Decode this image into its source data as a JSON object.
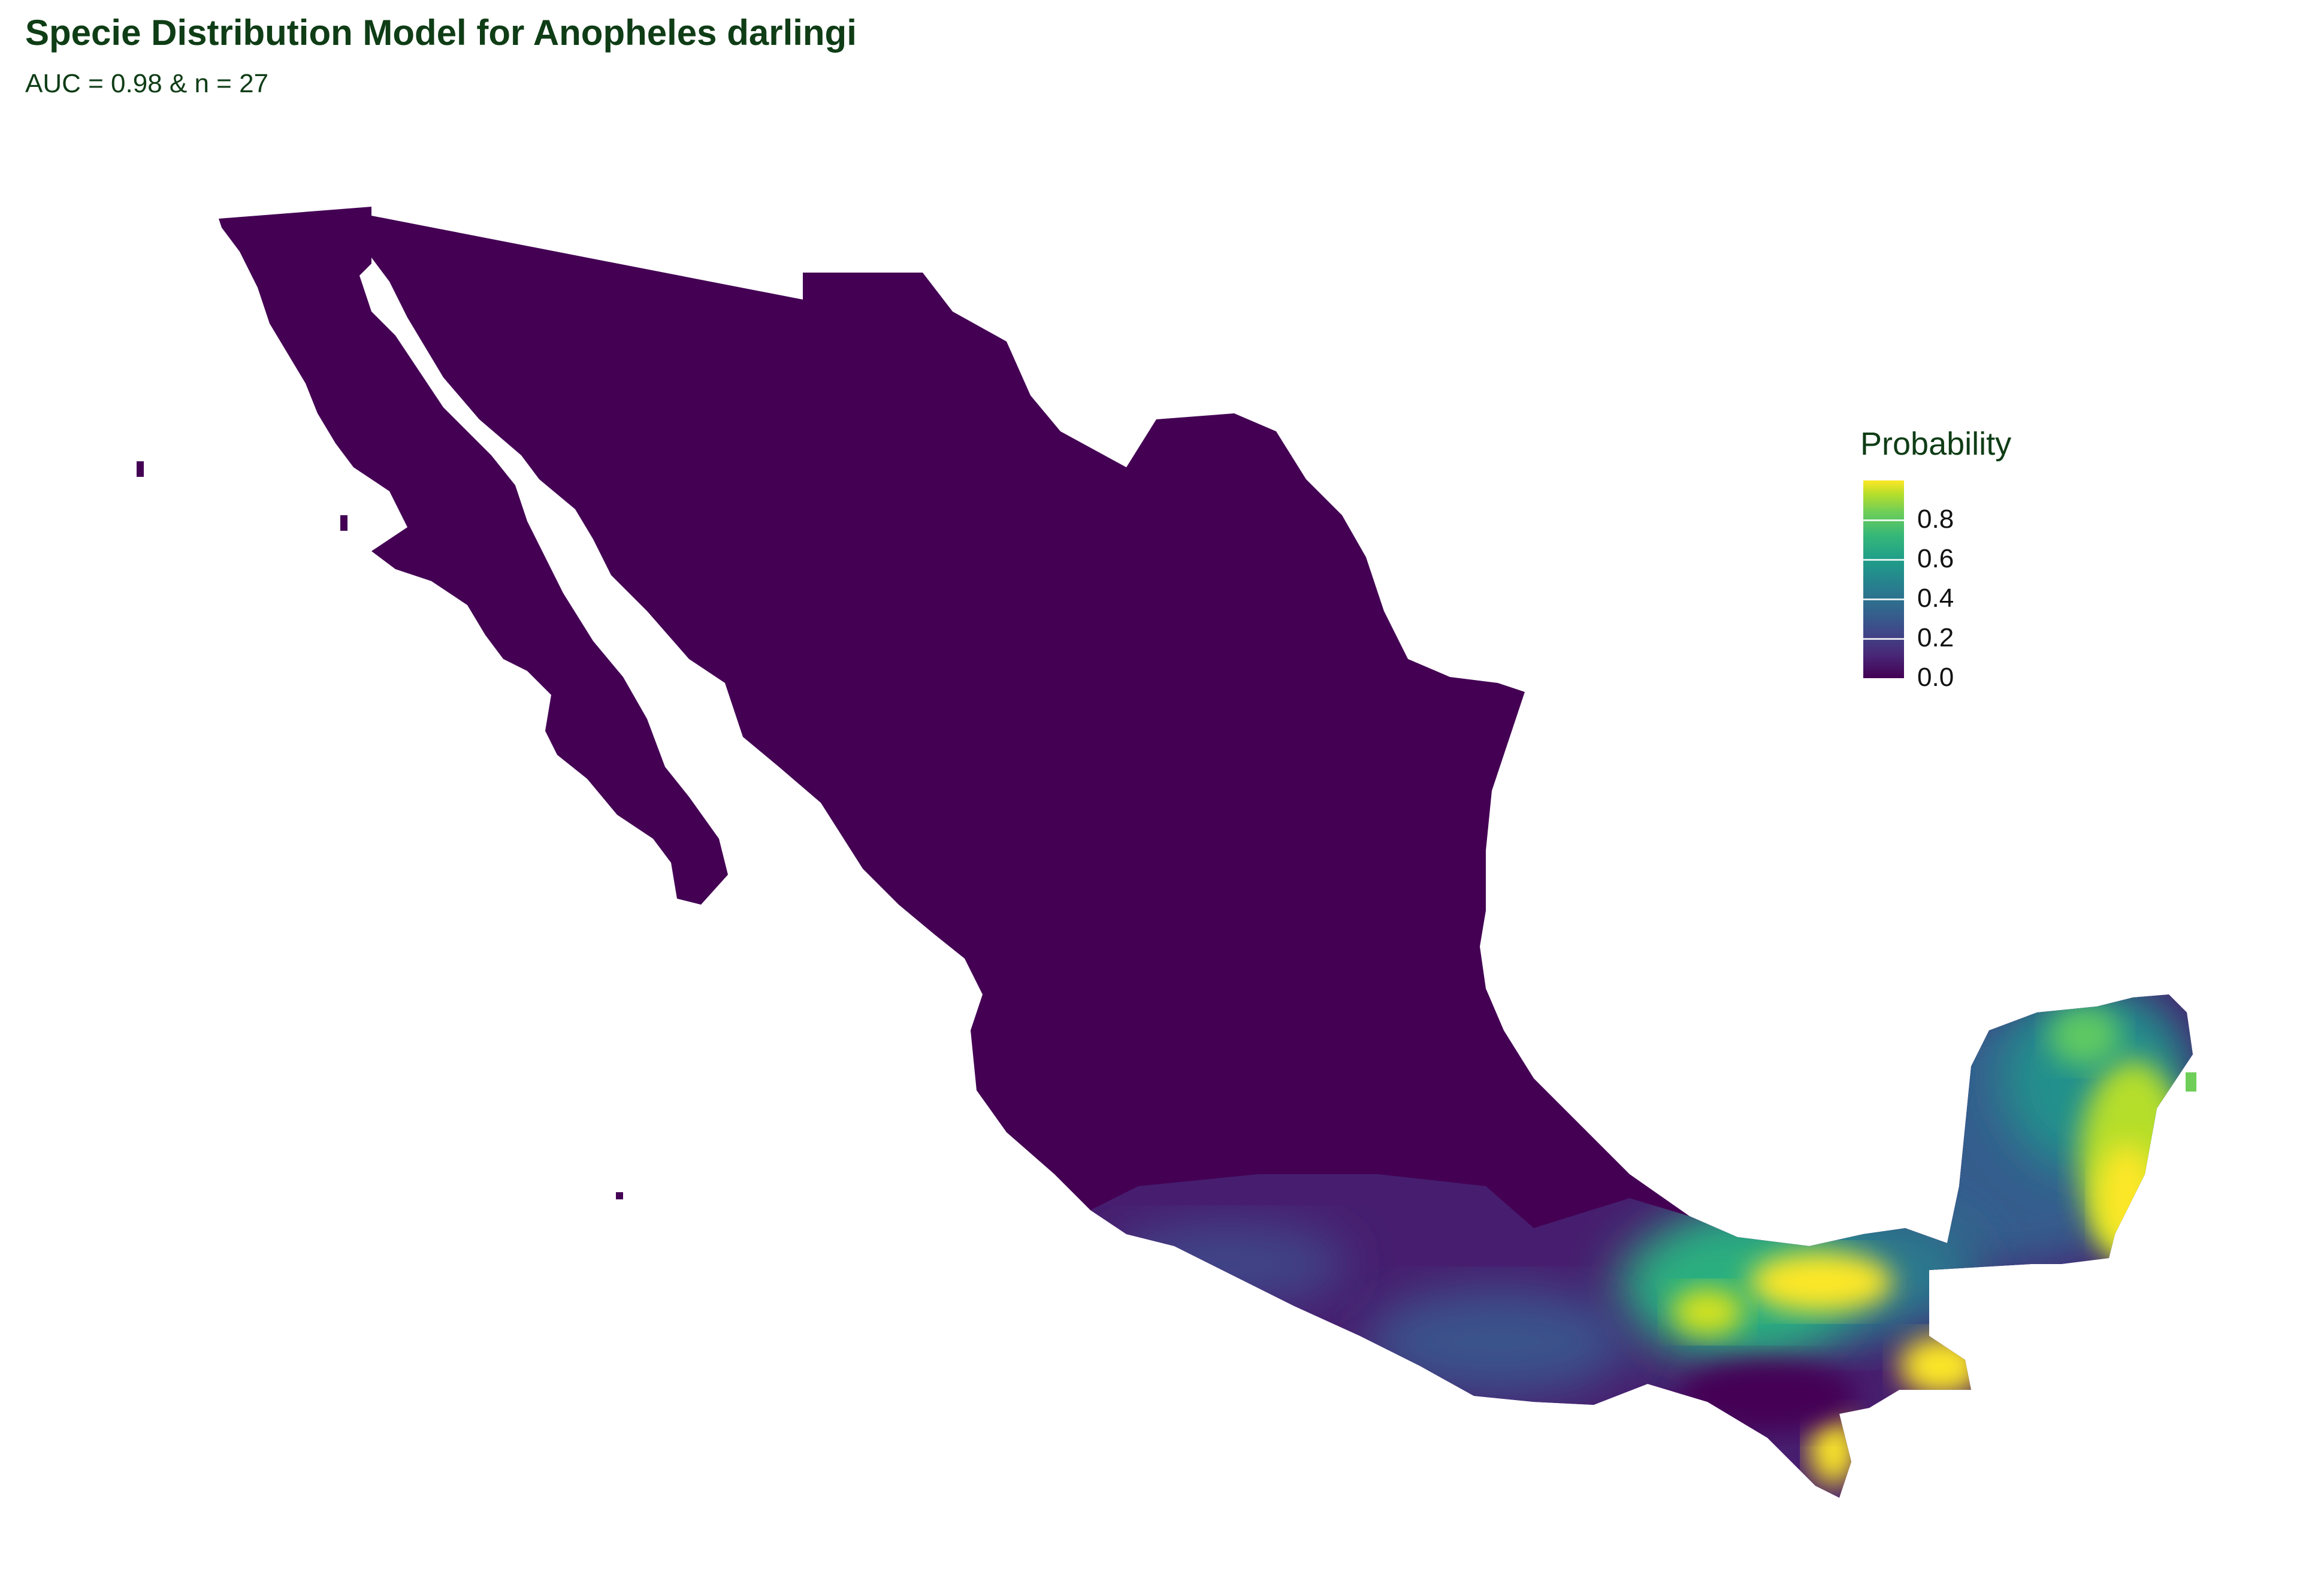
{
  "title": "Specie Distribution Model for Anopheles darlingi",
  "subtitle": "AUC = 0.98 & n = 27",
  "legend": {
    "title": "Probability",
    "ticks": [
      "0.0",
      "0.2",
      "0.4",
      "0.6",
      "0.8"
    ],
    "tick_values": [
      0.0,
      0.2,
      0.4,
      0.6,
      0.8
    ],
    "range": [
      0,
      1
    ],
    "palette": "viridis",
    "colors": [
      "#440154",
      "#3b528b",
      "#21918c",
      "#5ec962",
      "#fde725"
    ]
  },
  "map": {
    "region": "Mexico",
    "base_color": "#440154",
    "high_probability_areas": [
      "Tabasco",
      "northern Chiapas",
      "southeastern Yucatán Peninsula",
      "Quintana Roo coast",
      "Soconusco"
    ]
  }
}
